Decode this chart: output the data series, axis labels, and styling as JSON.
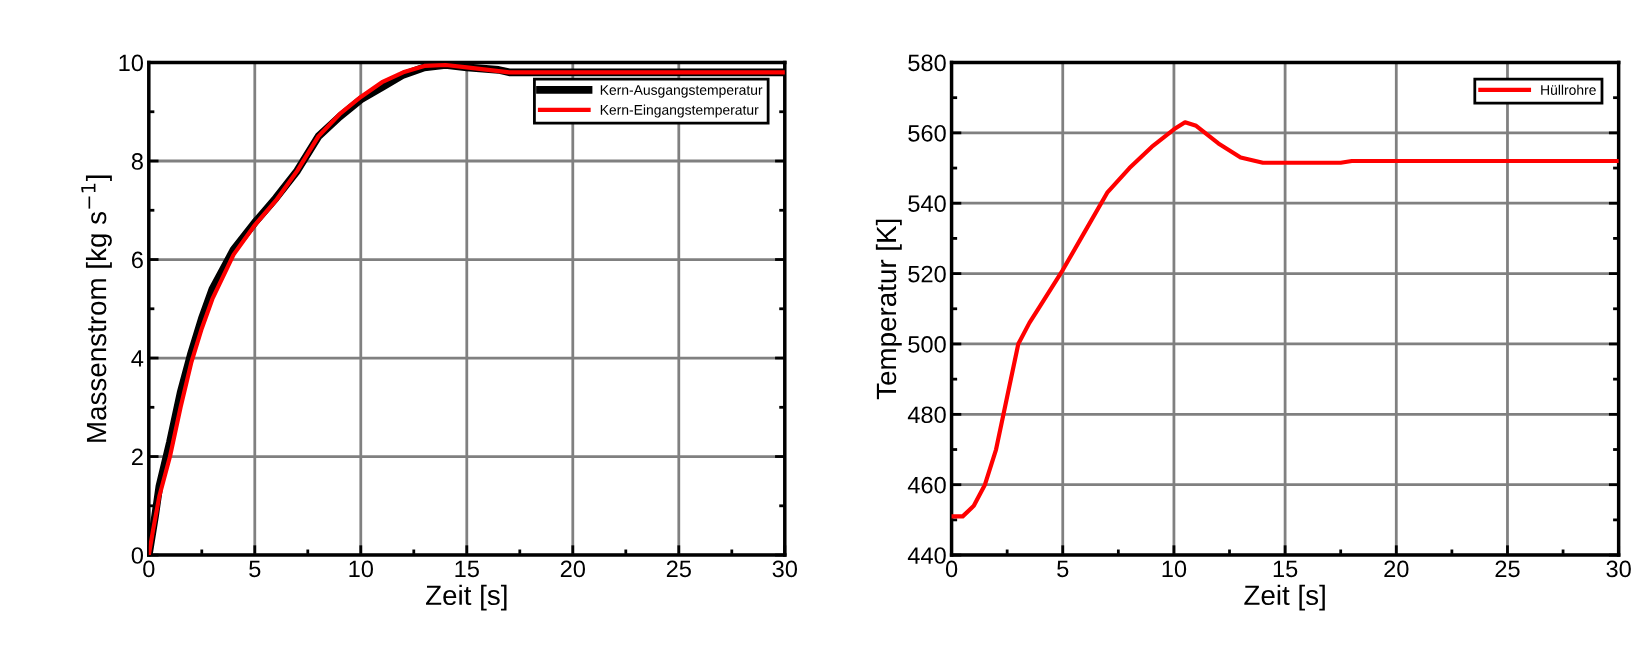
{
  "chart_data": [
    {
      "type": "line",
      "xlabel": "Zeit [s]",
      "ylabel": "Massenstrom [kg s$^{−1}$]",
      "xlim": [
        0,
        30
      ],
      "ylim": [
        0,
        10
      ],
      "xticks": [
        0,
        5,
        10,
        15,
        20,
        25,
        30
      ],
      "yticks": [
        0,
        2,
        4,
        6,
        8,
        10
      ],
      "grid": true,
      "legend": "top right",
      "series": [
        {
          "name": "Kern-Ausgangstemperatur",
          "color": "#000000",
          "x": [
            0,
            0.3,
            0.5,
            1,
            1.5,
            2,
            2.5,
            3,
            4,
            5,
            6,
            7,
            8,
            9,
            10,
            11,
            12,
            13,
            14,
            15,
            16.5,
            17,
            30
          ],
          "values": [
            0,
            0.8,
            1.4,
            2.3,
            3.3,
            4.1,
            4.8,
            5.4,
            6.2,
            6.75,
            7.25,
            7.8,
            8.5,
            8.9,
            9.25,
            9.5,
            9.75,
            9.9,
            9.95,
            9.9,
            9.85,
            9.8,
            9.8
          ]
        },
        {
          "name": "Kern-Eingangstemperatur",
          "color": "#ff0000",
          "x": [
            0,
            0.2,
            0.5,
            1,
            1.5,
            2,
            2.5,
            3,
            4,
            5,
            6,
            7,
            8,
            9,
            10,
            11,
            12,
            13,
            14,
            15,
            16,
            17,
            30
          ],
          "values": [
            0,
            0.5,
            1.2,
            2,
            3,
            3.9,
            4.6,
            5.2,
            6.1,
            6.7,
            7.2,
            7.8,
            8.5,
            8.95,
            9.3,
            9.6,
            9.8,
            9.93,
            9.95,
            9.9,
            9.85,
            9.8,
            9.8
          ]
        }
      ]
    },
    {
      "type": "line",
      "xlabel": "Zeit [s]",
      "ylabel": "Temperatur [K]",
      "xlim": [
        0,
        30
      ],
      "ylim": [
        440,
        580
      ],
      "xticks": [
        0,
        5,
        10,
        15,
        20,
        25,
        30
      ],
      "yticks": [
        440,
        460,
        480,
        500,
        520,
        540,
        560,
        580
      ],
      "grid": true,
      "legend": "top right",
      "series": [
        {
          "name": "Hüllrohre",
          "color": "#ff0000",
          "x": [
            0,
            0.5,
            1,
            1.5,
            2,
            2.5,
            3,
            3.5,
            4,
            5,
            6,
            7,
            8,
            9,
            10,
            10.5,
            11,
            12,
            13,
            14,
            17.5,
            18,
            30
          ],
          "values": [
            451,
            451,
            454,
            460,
            470,
            485,
            500,
            506,
            511,
            521,
            532,
            543,
            550,
            556,
            561,
            563,
            562,
            557,
            553,
            551.5,
            551.5,
            552,
            552
          ]
        }
      ]
    }
  ]
}
